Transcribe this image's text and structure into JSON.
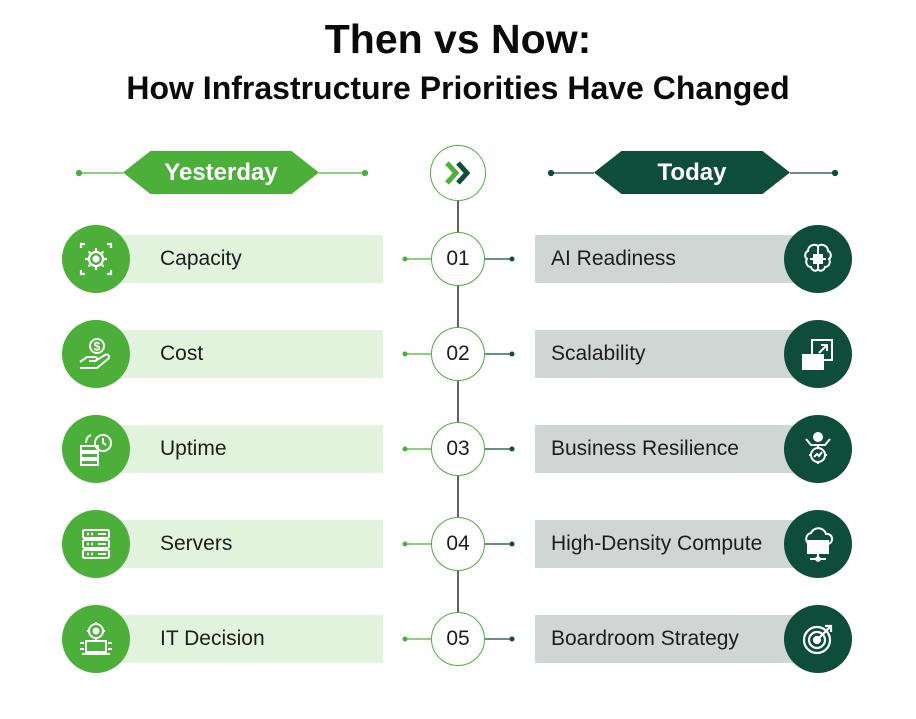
{
  "title": {
    "line1": "Then vs Now:",
    "line2": "How Infrastructure Priorities Have Changed"
  },
  "headers": {
    "left": "Yesterday",
    "right": "Today"
  },
  "center_icon": "double-chevron-right-icon",
  "colors": {
    "green": "#4caf3a",
    "light_green": "#e1f2dd",
    "dark_green": "#0f4d3b",
    "gray": "#cfd6d3"
  },
  "rows": [
    {
      "number": "01",
      "left": "Capacity",
      "right": "AI Readiness",
      "left_icon": "gear-arrows-icon",
      "right_icon": "ai-brain-chip-icon"
    },
    {
      "number": "02",
      "left": "Cost",
      "right": "Scalability",
      "left_icon": "hand-dollar-icon",
      "right_icon": "server-scale-icon"
    },
    {
      "number": "03",
      "left": "Uptime",
      "right": "Business Resilience",
      "left_icon": "server-clock-icon",
      "right_icon": "person-gear-icon"
    },
    {
      "number": "04",
      "left": "Servers",
      "right": "High-Density Compute",
      "left_icon": "server-rack-icon",
      "right_icon": "cloud-server-icon"
    },
    {
      "number": "05",
      "left": "IT Decision",
      "right": "Boardroom Strategy",
      "left_icon": "person-laptop-gear-icon",
      "right_icon": "target-arrow-icon"
    }
  ]
}
